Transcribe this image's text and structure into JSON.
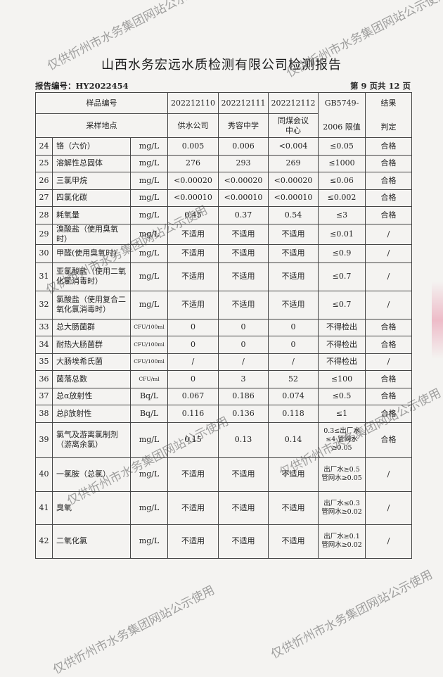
{
  "title": "山西水务宏远水质检测有限公司检测报告",
  "report_no": "报告编号：HY2022454",
  "page_no": "第 9 页共 12 页",
  "watermark": "仅供忻州市水务集团网站公示使用",
  "header": {
    "sample_no_label": "样品编号",
    "sample_ids": [
      "202212110",
      "202212111",
      "202212112"
    ],
    "standard_label": "GB5749-",
    "standard_label2": "2006 限值",
    "result_label": "结果",
    "result_label2": "判定",
    "location_label": "采样地点",
    "locations": [
      "供水公司",
      "秀容中学",
      "同煤会议中心"
    ]
  },
  "rows": [
    {
      "no": "24",
      "name": "铬（六价）",
      "unit": "mg/L",
      "v": [
        "0.005",
        "0.006",
        "<0.004"
      ],
      "limit": "≤0.05",
      "result": "合格"
    },
    {
      "no": "25",
      "name": "溶解性总固体",
      "unit": "mg/L",
      "v": [
        "276",
        "293",
        "269"
      ],
      "limit": "≤1000",
      "result": "合格"
    },
    {
      "no": "26",
      "name": "三氯甲烷",
      "unit": "mg/L",
      "v": [
        "<0.00020",
        "<0.00020",
        "<0.00020"
      ],
      "limit": "≤0.06",
      "result": "合格"
    },
    {
      "no": "27",
      "name": "四氯化碳",
      "unit": "mg/L",
      "v": [
        "<0.00010",
        "<0.00010",
        "<0.00010"
      ],
      "limit": "≤0.002",
      "result": "合格"
    },
    {
      "no": "28",
      "name": "耗氧量",
      "unit": "mg/L",
      "v": [
        "0.45",
        "0.37",
        "0.54"
      ],
      "limit": "≤3",
      "result": "合格"
    },
    {
      "no": "29",
      "name": "溴酸盐（使用臭氧时）",
      "unit": "mg/L",
      "v": [
        "不适用",
        "不适用",
        "不适用"
      ],
      "limit": "≤0.01",
      "result": "/"
    },
    {
      "no": "30",
      "name": "甲醛(使用臭氧时)",
      "unit": "mg/L",
      "v": [
        "不适用",
        "不适用",
        "不适用"
      ],
      "limit": "≤0.9",
      "result": "/"
    },
    {
      "no": "31",
      "name": "亚氯酸盐（使用二氧化氯消毒时）",
      "unit": "mg/L",
      "v": [
        "不适用",
        "不适用",
        "不适用"
      ],
      "limit": "≤0.7",
      "result": "/"
    },
    {
      "no": "32",
      "name": "氯酸盐（使用复合二氧化氯消毒时）",
      "unit": "mg/L",
      "v": [
        "不适用",
        "不适用",
        "不适用"
      ],
      "limit": "≤0.7",
      "result": "/"
    },
    {
      "no": "33",
      "name": "总大肠菌群",
      "unit": "CFU/100ml",
      "v": [
        "0",
        "0",
        "0"
      ],
      "limit": "不得检出",
      "result": "合格"
    },
    {
      "no": "34",
      "name": "耐热大肠菌群",
      "unit": "CFU/100ml",
      "v": [
        "0",
        "0",
        "0"
      ],
      "limit": "不得检出",
      "result": "合格"
    },
    {
      "no": "35",
      "name": "大肠埃希氏菌",
      "unit": "CFU/100ml",
      "v": [
        "/",
        "/",
        "/"
      ],
      "limit": "不得检出",
      "result": "/"
    },
    {
      "no": "36",
      "name": "菌落总数",
      "unit": "CFU/ml",
      "v": [
        "0",
        "3",
        "52"
      ],
      "limit": "≤100",
      "result": "合格"
    },
    {
      "no": "37",
      "name": "总α放射性",
      "unit": "Bq/L",
      "v": [
        "0.067",
        "0.186",
        "0.074"
      ],
      "limit": "≤0.5",
      "result": "合格"
    },
    {
      "no": "38",
      "name": "总β放射性",
      "unit": "Bq/L",
      "v": [
        "0.116",
        "0.136",
        "0.118"
      ],
      "limit": "≤1",
      "result": "合格"
    },
    {
      "no": "39",
      "name": "氯气及游离氯制剂（游离余氯）",
      "unit": "mg/L",
      "v": [
        "0.15",
        "0.13",
        "0.14"
      ],
      "limit": "0.3≤出厂水≤4 管网水≥0.05",
      "result": "合格"
    },
    {
      "no": "40",
      "name": "一氯胺（总氯）",
      "unit": "mg/L",
      "v": [
        "不适用",
        "不适用",
        "不适用"
      ],
      "limit": "出厂水≥0.5 管网水≥0.05",
      "result": "/"
    },
    {
      "no": "41",
      "name": "臭氧",
      "unit": "mg/L",
      "v": [
        "不适用",
        "不适用",
        "不适用"
      ],
      "limit": "出厂水≤0.3 管网水≥0.02",
      "result": "/"
    },
    {
      "no": "42",
      "name": "二氧化氯",
      "unit": "mg/L",
      "v": [
        "不适用",
        "不适用",
        "不适用"
      ],
      "limit": "出厂水≥0.1 管网水≥0.02",
      "result": "/"
    }
  ]
}
